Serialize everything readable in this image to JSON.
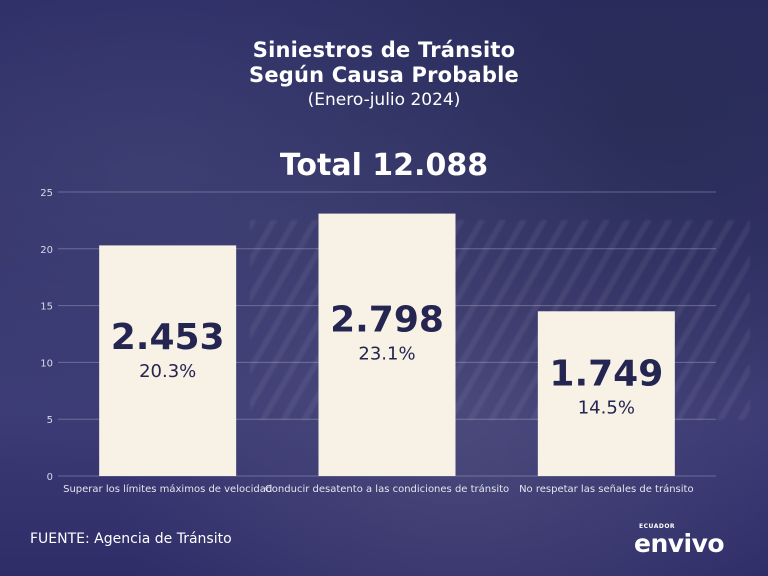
{
  "header": {
    "title_line1": "Siniestros de Tránsito",
    "title_line2": "Según Causa Probable",
    "subtitle": "(Enero-julio 2024)",
    "total": "Total 12.088"
  },
  "chart_data": {
    "type": "bar",
    "categories": [
      "Superar los límites máximos de velocidad",
      "Conducir desatento a las condiciones de tránsito",
      "No respetar las señales de tránsito"
    ],
    "values": [
      20.3,
      23.1,
      14.5
    ],
    "value_labels": [
      "2.453",
      "2.798",
      "1.749"
    ],
    "percent_labels": [
      "20.3%",
      "23.1%",
      "14.5%"
    ],
    "yticks": [
      "0",
      "5",
      "10",
      "15",
      "20",
      "25"
    ],
    "ylim": [
      0,
      25
    ],
    "grid": true,
    "bar_color": "#f8f1e6"
  },
  "footer": {
    "source": "FUENTE: Agencia de Tránsito",
    "logo_small": "ECUADOR",
    "logo_main": "envivo"
  }
}
